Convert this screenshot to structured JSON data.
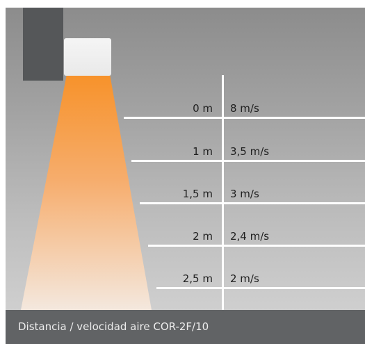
{
  "rows": [
    {
      "distance": "0 m",
      "velocity": "8 m/s"
    },
    {
      "distance": "1 m",
      "velocity": "3,5 m/s"
    },
    {
      "distance": "1,5 m",
      "velocity": "3 m/s"
    },
    {
      "distance": "2 m",
      "velocity": "2,4 m/s"
    },
    {
      "distance": "2,5 m",
      "velocity": "2 m/s"
    }
  ],
  "caption": "Distancia / velocidad aire COR-2F/10",
  "colors": {
    "beam_top": "#f7922a",
    "beam_bottom": "#f6ece3",
    "wall": "#555759",
    "caption_bar": "#616365"
  }
}
